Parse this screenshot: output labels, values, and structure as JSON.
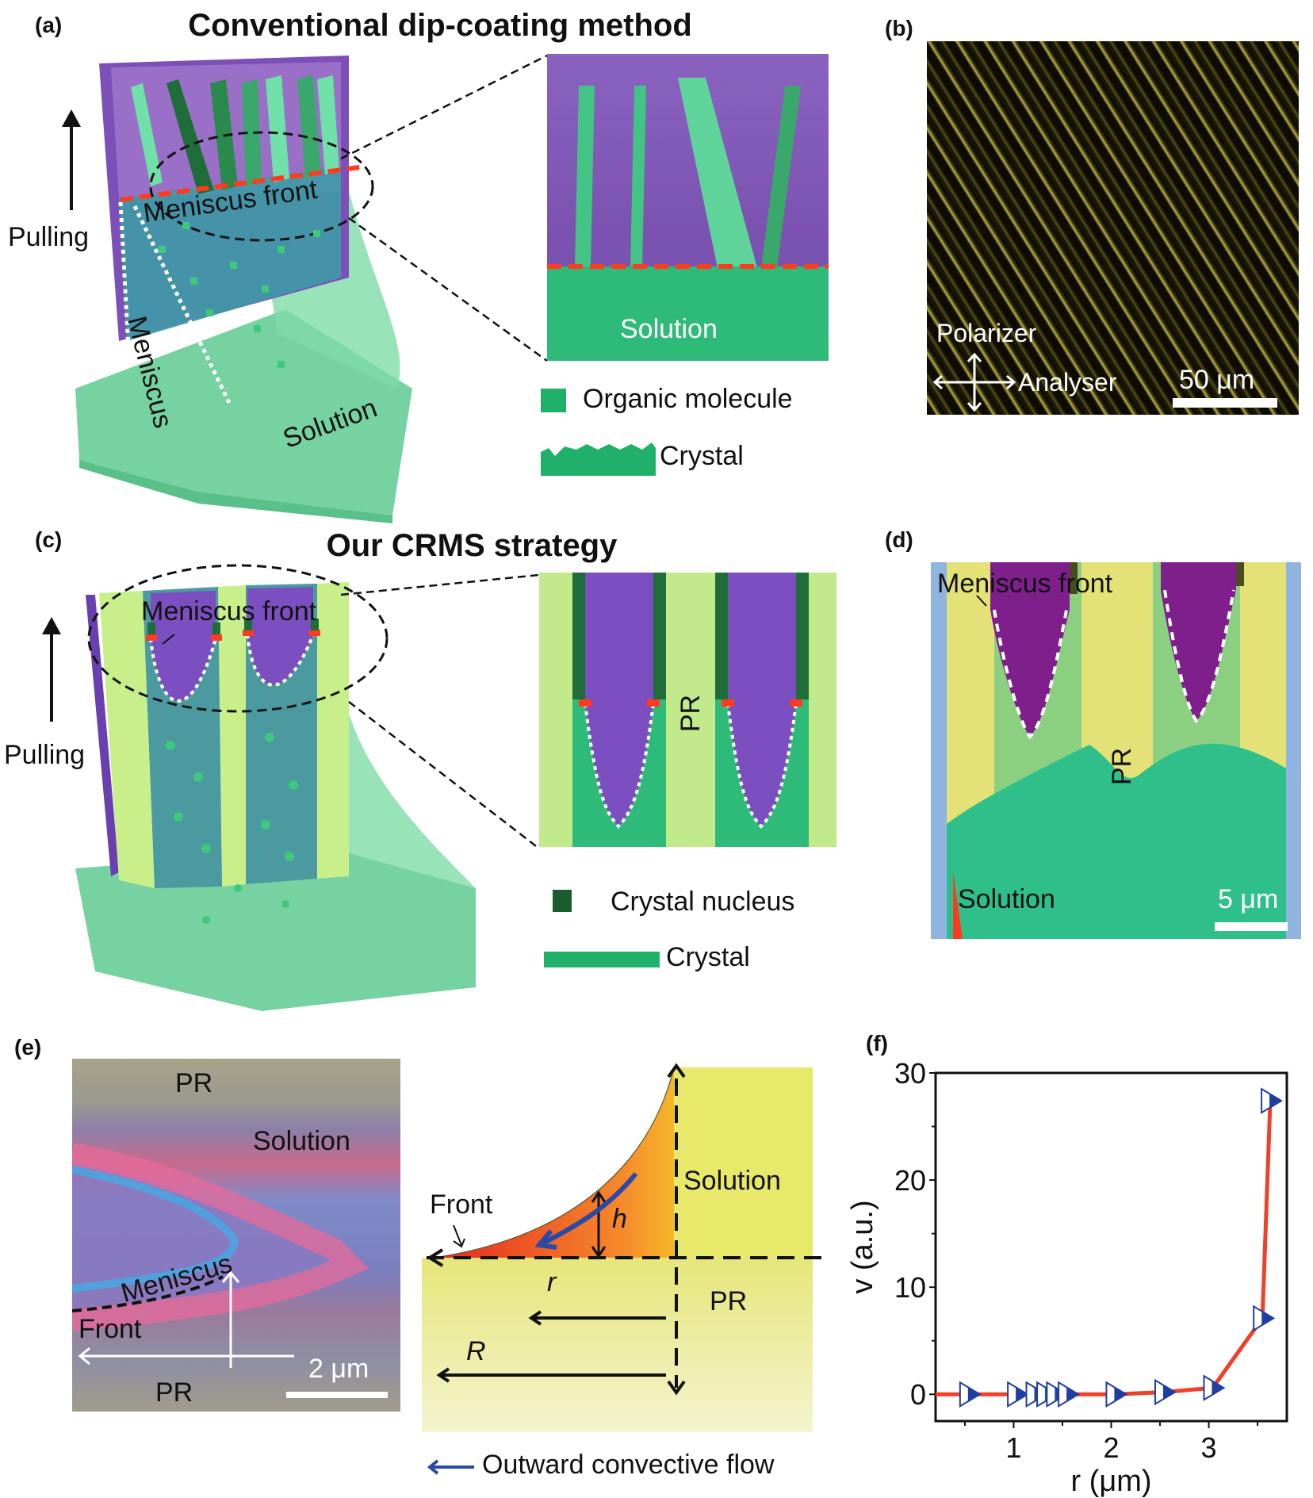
{
  "figure": {
    "panels": {
      "a": {
        "label": "(a)",
        "title": "Conventional dip-coating method",
        "pulling_label": "Pulling",
        "meniscus_front_label": "Meniscus front",
        "meniscus_label": "Meniscus",
        "solution_label": "Solution",
        "zoom_solution_label": "Solution",
        "legend": [
          {
            "symbol": "green-square",
            "label": "Organic molecule"
          },
          {
            "symbol": "jagged-crystal",
            "label": "Crystal"
          }
        ]
      },
      "b": {
        "label": "(b)",
        "polarizer_label": "Polarizer",
        "analyser_label": "Analyser",
        "scale_bar": "50 μm"
      },
      "c": {
        "label": "(c)",
        "title": "Our CRMS strategy",
        "pulling_label": "Pulling",
        "meniscus_front_label": "Meniscus front",
        "zoom_pr_label": "PR",
        "legend": [
          {
            "symbol": "dark-green-square",
            "label": "Crystal nucleus"
          },
          {
            "symbol": "green-bar",
            "label": "Crystal"
          }
        ]
      },
      "d": {
        "label": "(d)",
        "meniscus_front_label": "Meniscus front",
        "pr_label": "PR",
        "solution_label": "Solution",
        "scale_bar": "5 μm"
      },
      "e": {
        "label": "(e)",
        "image": {
          "pr_top": "PR",
          "solution_label": "Solution",
          "meniscus_label": "Meniscus",
          "front_label": "Front",
          "pr_bottom": "PR",
          "scale_bar": "2 μm"
        },
        "diagram": {
          "front_label": "Front",
          "solution_label": "Solution",
          "h_label": "h",
          "r_label": "r",
          "R_label": "R",
          "pr_label": "PR"
        },
        "legend_label": "Outward convective flow"
      },
      "f": {
        "label": "(f)"
      }
    },
    "colors": {
      "purple": "#7b52b0",
      "green": "#3dbf7e",
      "dark_green": "#1f6e3a",
      "red_dash": "#ff3b1f",
      "pr_yellow": "#e8e86a",
      "flow_blue": "#2a49a8",
      "marker_blue": "#1f3fa0",
      "line_red": "#f0402a"
    }
  },
  "chart_data": {
    "type": "line",
    "title": "",
    "xlabel": "r (μm)",
    "ylabel": "v (a.u.)",
    "xlim": [
      0.2,
      3.8
    ],
    "ylim": [
      -2.5,
      30
    ],
    "xticks": [
      1,
      2,
      3
    ],
    "xticks_minor": [
      0.5,
      1.5,
      2.5,
      3.5
    ],
    "yticks": [
      0,
      10,
      20,
      30
    ],
    "yticks_minor": [
      5,
      15,
      25
    ],
    "grid": false,
    "legend": "none",
    "series": [
      {
        "name": "v",
        "marker": "right-triangle-half-filled",
        "x": [
          0.54,
          1.03,
          1.22,
          1.33,
          1.43,
          1.55,
          2.04,
          2.54,
          3.04,
          3.55,
          3.63
        ],
        "y": [
          0.0,
          0.0,
          0.0,
          0.0,
          0.0,
          0.0,
          0.0,
          0.2,
          0.6,
          7.1,
          27.4
        ]
      }
    ],
    "line_extends_from_x": 0.2
  }
}
